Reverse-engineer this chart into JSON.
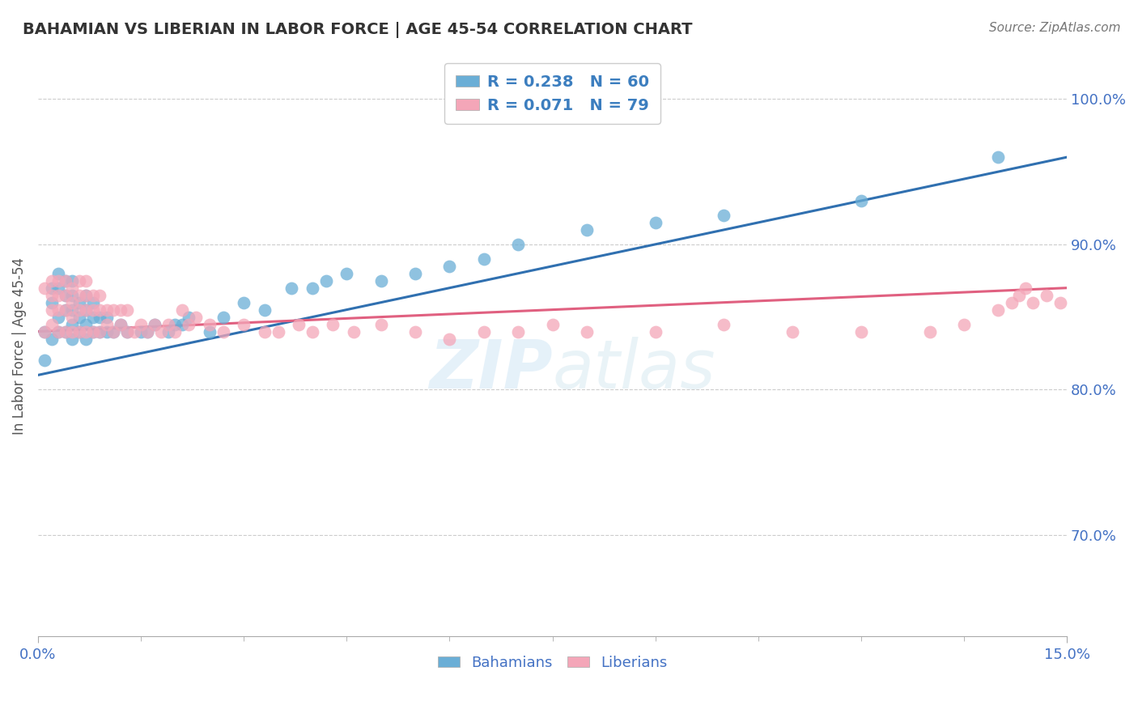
{
  "title": "BAHAMIAN VS LIBERIAN IN LABOR FORCE | AGE 45-54 CORRELATION CHART",
  "source": "Source: ZipAtlas.com",
  "xlabel": "",
  "ylabel": "In Labor Force | Age 45-54",
  "xlim": [
    0.0,
    0.15
  ],
  "ylim": [
    0.63,
    1.03
  ],
  "yticks": [
    0.7,
    0.8,
    0.9,
    1.0
  ],
  "ytick_labels": [
    "70.0%",
    "80.0%",
    "90.0%",
    "100.0%"
  ],
  "xticks": [
    0.0,
    0.15
  ],
  "xtick_labels": [
    "0.0%",
    "15.0%"
  ],
  "blue_R": 0.238,
  "blue_N": 60,
  "pink_R": 0.071,
  "pink_N": 79,
  "blue_color": "#6aaed6",
  "pink_color": "#f4a6b8",
  "blue_line_color": "#3070b0",
  "pink_line_color": "#e06080",
  "background_color": "#ffffff",
  "grid_color": "#cccccc",
  "title_color": "#333333",
  "legend_text_color": "#3c7ebf",
  "blue_scatter_x": [
    0.001,
    0.001,
    0.002,
    0.002,
    0.002,
    0.003,
    0.003,
    0.003,
    0.003,
    0.004,
    0.004,
    0.004,
    0.004,
    0.005,
    0.005,
    0.005,
    0.005,
    0.005,
    0.006,
    0.006,
    0.006,
    0.007,
    0.007,
    0.007,
    0.007,
    0.008,
    0.008,
    0.008,
    0.009,
    0.009,
    0.01,
    0.01,
    0.011,
    0.012,
    0.013,
    0.015,
    0.016,
    0.017,
    0.019,
    0.02,
    0.021,
    0.022,
    0.025,
    0.027,
    0.03,
    0.033,
    0.037,
    0.04,
    0.042,
    0.045,
    0.05,
    0.055,
    0.06,
    0.065,
    0.07,
    0.08,
    0.09,
    0.1,
    0.12,
    0.14
  ],
  "blue_scatter_y": [
    0.84,
    0.82,
    0.835,
    0.86,
    0.87,
    0.84,
    0.85,
    0.87,
    0.88,
    0.84,
    0.855,
    0.865,
    0.875,
    0.835,
    0.845,
    0.855,
    0.865,
    0.875,
    0.84,
    0.85,
    0.86,
    0.835,
    0.845,
    0.855,
    0.865,
    0.84,
    0.85,
    0.86,
    0.84,
    0.85,
    0.84,
    0.85,
    0.84,
    0.845,
    0.84,
    0.84,
    0.84,
    0.845,
    0.84,
    0.845,
    0.845,
    0.85,
    0.84,
    0.85,
    0.86,
    0.855,
    0.87,
    0.87,
    0.875,
    0.88,
    0.875,
    0.88,
    0.885,
    0.89,
    0.9,
    0.91,
    0.915,
    0.92,
    0.93,
    0.96
  ],
  "pink_scatter_x": [
    0.001,
    0.001,
    0.002,
    0.002,
    0.002,
    0.002,
    0.003,
    0.003,
    0.003,
    0.003,
    0.004,
    0.004,
    0.004,
    0.004,
    0.005,
    0.005,
    0.005,
    0.005,
    0.006,
    0.006,
    0.006,
    0.006,
    0.007,
    0.007,
    0.007,
    0.007,
    0.008,
    0.008,
    0.008,
    0.009,
    0.009,
    0.009,
    0.01,
    0.01,
    0.011,
    0.011,
    0.012,
    0.012,
    0.013,
    0.013,
    0.014,
    0.015,
    0.016,
    0.017,
    0.018,
    0.019,
    0.02,
    0.021,
    0.022,
    0.023,
    0.025,
    0.027,
    0.03,
    0.033,
    0.035,
    0.038,
    0.04,
    0.043,
    0.046,
    0.05,
    0.055,
    0.06,
    0.065,
    0.07,
    0.075,
    0.08,
    0.09,
    0.1,
    0.11,
    0.12,
    0.13,
    0.135,
    0.14,
    0.142,
    0.143,
    0.144,
    0.145,
    0.147,
    0.149
  ],
  "pink_scatter_y": [
    0.84,
    0.87,
    0.845,
    0.855,
    0.865,
    0.875,
    0.84,
    0.855,
    0.865,
    0.875,
    0.84,
    0.855,
    0.865,
    0.875,
    0.84,
    0.85,
    0.86,
    0.87,
    0.84,
    0.855,
    0.865,
    0.875,
    0.84,
    0.855,
    0.865,
    0.875,
    0.84,
    0.855,
    0.865,
    0.84,
    0.855,
    0.865,
    0.845,
    0.855,
    0.84,
    0.855,
    0.845,
    0.855,
    0.84,
    0.855,
    0.84,
    0.845,
    0.84,
    0.845,
    0.84,
    0.845,
    0.84,
    0.855,
    0.845,
    0.85,
    0.845,
    0.84,
    0.845,
    0.84,
    0.84,
    0.845,
    0.84,
    0.845,
    0.84,
    0.845,
    0.84,
    0.835,
    0.84,
    0.84,
    0.845,
    0.84,
    0.84,
    0.845,
    0.84,
    0.84,
    0.84,
    0.845,
    0.855,
    0.86,
    0.865,
    0.87,
    0.86,
    0.865,
    0.86
  ],
  "blue_line_x": [
    0.0,
    0.15
  ],
  "blue_line_y": [
    0.81,
    0.96
  ],
  "pink_line_x": [
    0.0,
    0.15
  ],
  "pink_line_y": [
    0.84,
    0.87
  ]
}
